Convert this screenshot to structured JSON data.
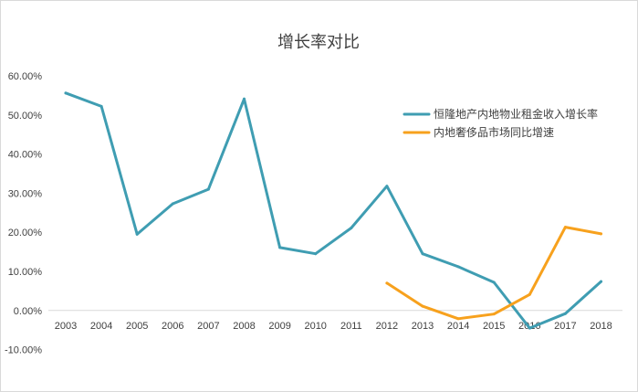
{
  "chart_data": {
    "type": "line",
    "title": "增长率对比",
    "xlabel": "",
    "ylabel": "",
    "x": [
      "2003",
      "2004",
      "2005",
      "2006",
      "2007",
      "2008",
      "2009",
      "2010",
      "2011",
      "2012",
      "2013",
      "2014",
      "2015",
      "2016",
      "2017",
      "2018"
    ],
    "ylim": [
      -10,
      60
    ],
    "yticks": [
      -10,
      0,
      10,
      20,
      30,
      40,
      50,
      60
    ],
    "ytick_labels": [
      "-10.00%",
      "0.00%",
      "10.00%",
      "20.00%",
      "30.00%",
      "40.00%",
      "50.00%",
      "60.00%"
    ],
    "y_unit": "%",
    "grid": false,
    "legend_position": "top-right",
    "series": [
      {
        "name": "恒隆地产内地物业租金收入增长率",
        "color": "#3f9db2",
        "values": [
          55.6,
          52.2,
          19.5,
          27.3,
          31.0,
          54.1,
          16.1,
          14.5,
          21.1,
          31.8,
          14.5,
          11.2,
          7.2,
          -4.5,
          -0.8,
          7.4
        ]
      },
      {
        "name": "内地奢侈品市场同比增速",
        "color": "#f7a11d",
        "values": [
          null,
          null,
          null,
          null,
          null,
          null,
          null,
          null,
          null,
          7.0,
          1.1,
          -2.1,
          -0.9,
          4.1,
          21.3,
          19.6
        ]
      }
    ]
  }
}
